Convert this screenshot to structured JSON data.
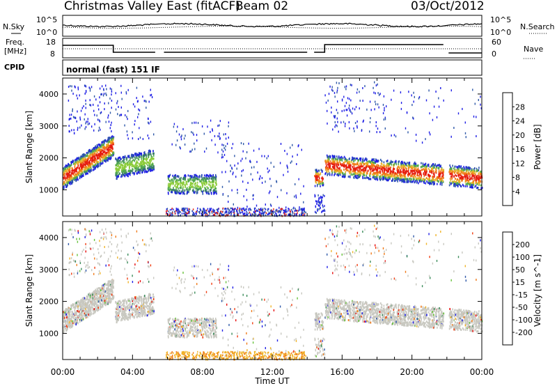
{
  "header": {
    "title": "Christmas Valley East (fitACF)",
    "beam": "Beam 02",
    "date": "03/Oct/2012"
  },
  "top_panels": {
    "nsky_label": "N.Sky",
    "nsearch_label": "N.Search",
    "freq_label_1": "Freq.",
    "freq_label_2": "[MHz]",
    "nave_label": "Nave",
    "cpid_label": "CPID",
    "mode_text": "normal (fast) 151 IF",
    "noise_ticks": [
      "10^5",
      "10^0"
    ],
    "freq_ticks": [
      "18",
      "8"
    ],
    "nave_ticks": [
      "60",
      "0"
    ]
  },
  "chart_data": [
    {
      "type": "heatmap",
      "title": "",
      "ylabel": "Slant Range [km]",
      "xlabel": "Time UT",
      "x_ticks": [
        "00:00",
        "04:00",
        "08:00",
        "12:00",
        "16:00",
        "20:00",
        "00:00"
      ],
      "x_range_hours": [
        0,
        24
      ],
      "y_ticks": [
        1000,
        2000,
        3000,
        4000
      ],
      "ylim": [
        180,
        4500
      ],
      "colorbar": {
        "label": "Power [dB]",
        "ticks": [
          4,
          8,
          12,
          16,
          20,
          24,
          28
        ],
        "range": [
          0,
          32
        ],
        "colors": [
          "#1e1ee6",
          "#2e58a8",
          "#3a7d6a",
          "#52a84c",
          "#8ccc3a",
          "#e6b428",
          "#f07a18",
          "#e61e10"
        ]
      },
      "scatter_regions": [
        {
          "t0": 0.0,
          "t1": 2.8,
          "r0": 1200,
          "r1": 2700,
          "level": "high"
        },
        {
          "t0": 3.0,
          "t1": 5.2,
          "r0": 1300,
          "r1": 2300,
          "level": "mid"
        },
        {
          "t0": 6.0,
          "t1": 8.8,
          "r0": 900,
          "r1": 1700,
          "level": "mid"
        },
        {
          "t0": 15.0,
          "t1": 24.0,
          "r0": 1100,
          "r1": 2100,
          "level": "high"
        }
      ],
      "data_gaps_hours": [
        [
          5.3,
          5.8
        ],
        [
          14.0,
          14.4
        ],
        [
          21.8,
          22.1
        ]
      ]
    },
    {
      "type": "heatmap",
      "title": "",
      "ylabel": "Slant Range [km]",
      "xlabel": "Time UT",
      "x_ticks": [
        "00:00",
        "04:00",
        "08:00",
        "12:00",
        "16:00",
        "20:00",
        "00:00"
      ],
      "x_range_hours": [
        0,
        24
      ],
      "y_ticks": [
        1000,
        2000,
        3000,
        4000
      ],
      "ylim": [
        180,
        4500
      ],
      "colorbar": {
        "label": "Velocity [m s^-1]",
        "ticks": [
          200,
          100,
          50,
          15,
          -15,
          -50,
          -100,
          -200
        ],
        "colors": [
          "#1e1ee6",
          "#2e58a8",
          "#3a8c5a",
          "#66c23a",
          "#c8c8c0",
          "#f0b428",
          "#f07a18",
          "#f03c10",
          "#e60a0a"
        ]
      },
      "data_gaps_hours": [
        [
          5.3,
          5.8
        ],
        [
          14.0,
          14.4
        ],
        [
          21.8,
          22.1
        ]
      ]
    }
  ],
  "x_axis_title": "Time UT"
}
